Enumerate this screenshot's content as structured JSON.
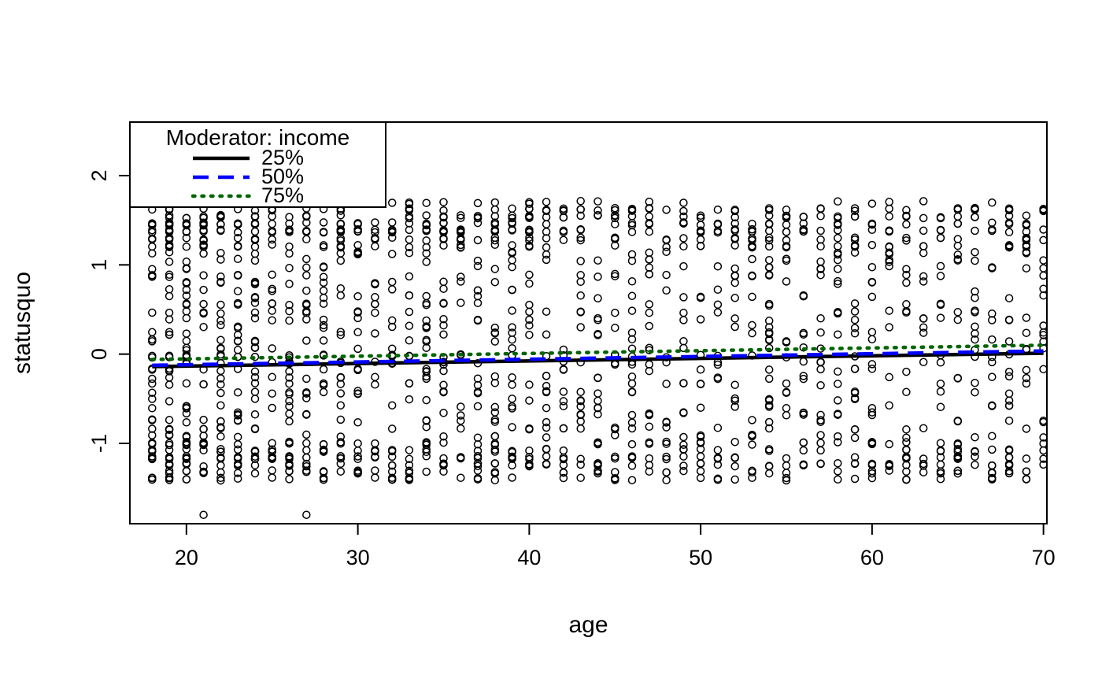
{
  "figure": {
    "background": "#ffffff",
    "foreground": "#000000"
  },
  "chart_data": {
    "type": "scatter",
    "title": "",
    "xlabel": "age",
    "ylabel": "statusquo",
    "xlim": [
      16.7,
      70.2
    ],
    "ylim": [
      -1.9,
      2.6
    ],
    "x_ticks": [
      20,
      30,
      40,
      50,
      60,
      70
    ],
    "y_ticks": [
      -1,
      0,
      1,
      2
    ],
    "grid": false,
    "marker": {
      "shape": "open-circle",
      "color": "#000000",
      "radius_px": 4.5,
      "stroke_px": 1.5
    },
    "legend": {
      "position": "topleft",
      "title": "Moderator: income",
      "entries": [
        {
          "label": "25%",
          "color": "#000000",
          "linetype": "solid"
        },
        {
          "label": "50%",
          "color": "#0000ff",
          "linetype": "dashed"
        },
        {
          "label": "75%",
          "color": "#006400",
          "linetype": "dotted"
        }
      ]
    },
    "moderation_lines": [
      {
        "name": "income-25th-percentile",
        "label": "25%",
        "color": "#000000",
        "linetype": "solid",
        "x": [
          18,
          70
        ],
        "y": [
          -0.14,
          0.01
        ]
      },
      {
        "name": "income-50th-percentile",
        "label": "50%",
        "color": "#0000ff",
        "linetype": "dashed",
        "x": [
          18,
          70
        ],
        "y": [
          -0.125,
          0.035
        ]
      },
      {
        "name": "income-75th-percentile",
        "label": "75%",
        "color": "#006400",
        "linetype": "dotted",
        "x": [
          18,
          70
        ],
        "y": [
          -0.06,
          0.1
        ]
      }
    ],
    "scatter": {
      "description": "Open-circle observations at integer ages 18-70; statusquo scores lie in horizontal bands between about -1.4 and 1.7, denser at younger ages and at the extreme bands; two low outliers near statusquo -1.8 at ages ~21 and ~27.",
      "n_points": 1700,
      "age_min": 18,
      "age_max": 70,
      "age_skew": 1.25,
      "y_jitter": 0.018,
      "y_bands": [
        -1.4,
        -1.32,
        -1.24,
        -1.16,
        -1.08,
        -1.0,
        -0.92,
        -0.83,
        -0.75,
        -0.67,
        -0.59,
        -0.51,
        -0.43,
        -0.34,
        -0.26,
        -0.18,
        -0.1,
        -0.02,
        0.06,
        0.15,
        0.23,
        0.31,
        0.39,
        0.47,
        0.56,
        0.64,
        0.72,
        0.8,
        0.88,
        0.97,
        1.05,
        1.13,
        1.21,
        1.29,
        1.38,
        1.46,
        1.54,
        1.62,
        1.7,
        -1.4,
        -1.32,
        -1.24,
        -1.16,
        -1.08,
        -1.0,
        -1.24,
        -1.16,
        1.21,
        1.29,
        1.38,
        1.46,
        1.54,
        1.62,
        1.38,
        1.46,
        1.54
      ],
      "outliers": [
        [
          21,
          -1.8
        ],
        [
          27,
          -1.8
        ]
      ],
      "seed": 20240607
    }
  }
}
